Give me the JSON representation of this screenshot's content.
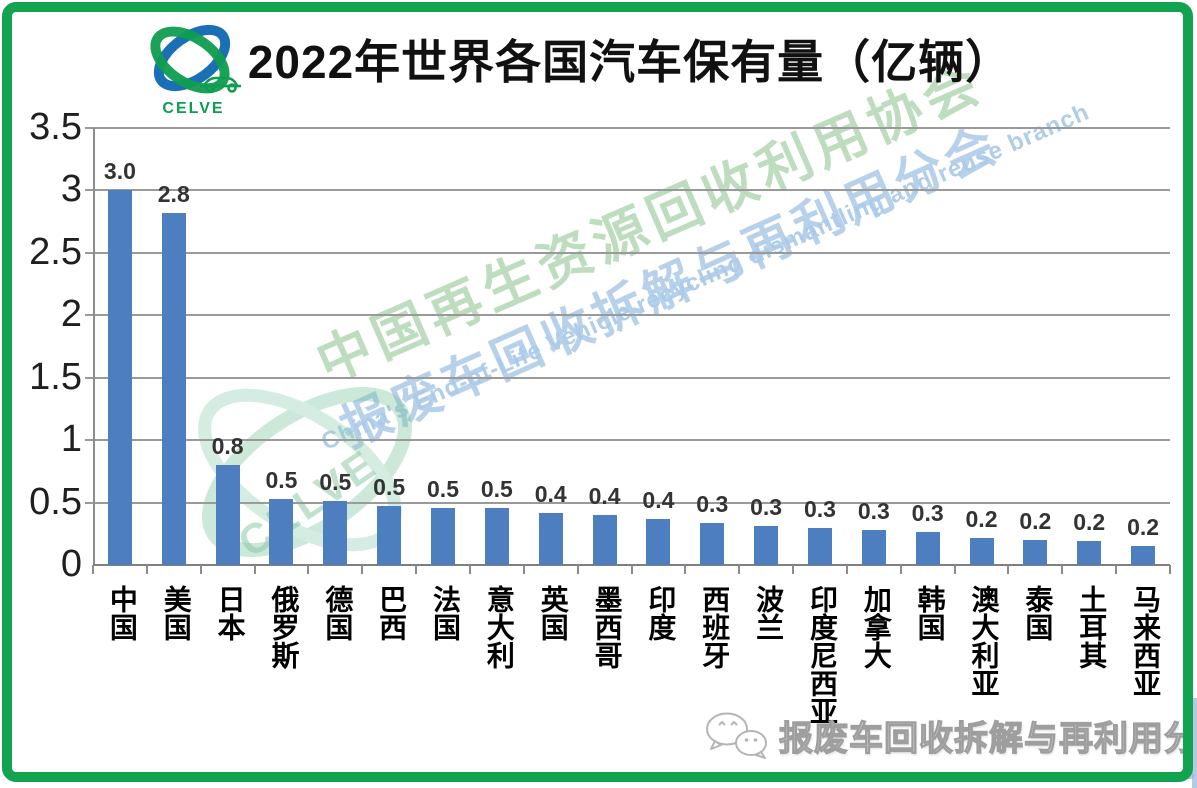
{
  "branding": {
    "logo_text": "CELVE"
  },
  "watermarks": {
    "green_cn": "中国再生资源回收利用协会",
    "blue_cn": "报废车回收拆解与再利用分会",
    "blue_en": "China's End-of-Life Vehicle recycling dismantling and reuse branch",
    "logo_text": "CELVE"
  },
  "footer": {
    "text": "报废车回收拆解与再利用分会",
    "icon": "wechat-icon"
  },
  "colors": {
    "frame_green": "#12a350",
    "bar_blue": "#4d7ebf",
    "gridline_gray": "#9a9a9a",
    "watermark_green": "#b3d8b3",
    "watermark_blue": "#b0cde9"
  },
  "chart_data": {
    "type": "bar",
    "title": "2022年世界各国汽车保有量（亿辆）",
    "xlabel": "",
    "ylabel": "",
    "categories": [
      "中国",
      "美国",
      "日本",
      "俄罗斯",
      "德国",
      "巴西",
      "法国",
      "意大利",
      "英国",
      "墨西哥",
      "印度",
      "西班牙",
      "波兰",
      "印度尼西亚",
      "加拿大",
      "韩国",
      "澳大利亚",
      "泰国",
      "土耳其",
      "马来西亚"
    ],
    "values": [
      3.0,
      2.8,
      0.8,
      0.5,
      0.5,
      0.5,
      0.5,
      0.5,
      0.4,
      0.4,
      0.4,
      0.3,
      0.3,
      0.3,
      0.3,
      0.3,
      0.2,
      0.2,
      0.2,
      0.2
    ],
    "value_labels": [
      "3.0",
      "2.8",
      "0.8",
      "0.5",
      "0.5",
      "0.5",
      "0.5",
      "0.5",
      "0.4",
      "0.4",
      "0.4",
      "0.3",
      "0.3",
      "0.3",
      "0.3",
      "0.3",
      "0.2",
      "0.2",
      "0.2",
      "0.2"
    ],
    "bar_heights_rendered": [
      3.0,
      2.82,
      0.8,
      0.53,
      0.51,
      0.47,
      0.46,
      0.46,
      0.42,
      0.4,
      0.37,
      0.34,
      0.31,
      0.295,
      0.28,
      0.265,
      0.215,
      0.2,
      0.19,
      0.155
    ],
    "ylim": [
      0,
      3.5
    ],
    "ytick_values": [
      3.5,
      3,
      2.5,
      2,
      1.5,
      1,
      0.5,
      0
    ],
    "ytick_labels": [
      "3.5",
      "3",
      "2.5",
      "2",
      "1.5",
      "1",
      "0.5",
      "0"
    ],
    "grid": true,
    "legend": false,
    "bar_color": "#4d7ebf"
  }
}
